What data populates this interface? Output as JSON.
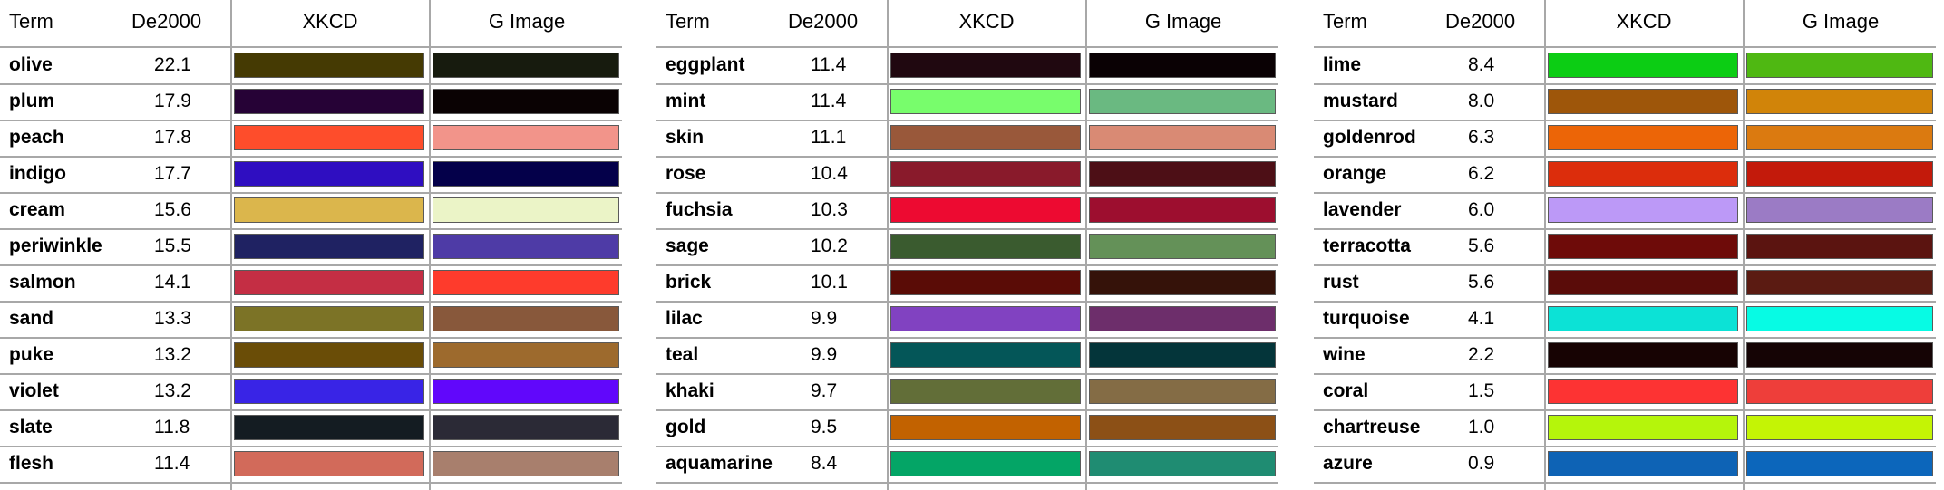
{
  "headers": {
    "term": "Term",
    "de2000": "De2000",
    "xkcd": "XKCD",
    "gimage": "G Image"
  },
  "tables": [
    {
      "rows": [
        {
          "term": "olive",
          "de": "22.1",
          "xkcd": "#453a03",
          "gimage": "#171b0e"
        },
        {
          "term": "plum",
          "de": "17.9",
          "xkcd": "#260236",
          "gimage": "#0a0203"
        },
        {
          "term": "peach",
          "de": "17.8",
          "xkcd": "#fe4d2b",
          "gimage": "#f2948a"
        },
        {
          "term": "indigo",
          "de": "17.7",
          "xkcd": "#2f0ec1",
          "gimage": "#04004a"
        },
        {
          "term": "cream",
          "de": "15.6",
          "xkcd": "#dbb64c",
          "gimage": "#ebf4c7"
        },
        {
          "term": "periwinkle",
          "de": "15.5",
          "xkcd": "#1f2262",
          "gimage": "#4e3ba6"
        },
        {
          "term": "salmon",
          "de": "14.1",
          "xkcd": "#c42e44",
          "gimage": "#fe3b2c"
        },
        {
          "term": "sand",
          "de": "13.3",
          "xkcd": "#7c7326",
          "gimage": "#88583b"
        },
        {
          "term": "puke",
          "de": "13.2",
          "xkcd": "#6a4d07",
          "gimage": "#9d6a2d"
        },
        {
          "term": "violet",
          "de": "13.2",
          "xkcd": "#3924e6",
          "gimage": "#6107fb"
        },
        {
          "term": "slate",
          "de": "11.8",
          "xkcd": "#141c22",
          "gimage": "#2b2a36"
        },
        {
          "term": "flesh",
          "de": "11.4",
          "xkcd": "#d26a5a",
          "gimage": "#a87f6d"
        }
      ]
    },
    {
      "rows": [
        {
          "term": "eggplant",
          "de": "11.4",
          "xkcd": "#200810",
          "gimage": "#0a0104"
        },
        {
          "term": "mint",
          "de": "11.4",
          "xkcd": "#78fd6c",
          "gimage": "#6ab981"
        },
        {
          "term": "skin",
          "de": "11.1",
          "xkcd": "#99583a",
          "gimage": "#d98a74"
        },
        {
          "term": "rose",
          "de": "10.4",
          "xkcd": "#891a2b",
          "gimage": "#4d0f16"
        },
        {
          "term": "fuchsia",
          "de": "10.3",
          "xkcd": "#ed0a31",
          "gimage": "#9d0e2f"
        },
        {
          "term": "sage",
          "de": "10.2",
          "xkcd": "#3a5b2f",
          "gimage": "#649158"
        },
        {
          "term": "brick",
          "de": "10.1",
          "xkcd": "#5a0c06",
          "gimage": "#351209"
        },
        {
          "term": "lilac",
          "de": "9.9",
          "xkcd": "#8142c1",
          "gimage": "#6d2e6b"
        },
        {
          "term": "teal",
          "de": "9.9",
          "xkcd": "#045658",
          "gimage": "#04353a"
        },
        {
          "term": "khaki",
          "de": "9.7",
          "xkcd": "#626e38",
          "gimage": "#846c45"
        },
        {
          "term": "gold",
          "de": "9.5",
          "xkcd": "#c26200",
          "gimage": "#8c5016"
        },
        {
          "term": "aquamarine",
          "de": "8.4",
          "xkcd": "#04a566",
          "gimage": "#1f8c72"
        }
      ]
    },
    {
      "rows": [
        {
          "term": "lime",
          "de": "8.4",
          "xkcd": "#0ccd14",
          "gimage": "#4fb812"
        },
        {
          "term": "mustard",
          "de": "8.0",
          "xkcd": "#9e560a",
          "gimage": "#d18409"
        },
        {
          "term": "goldenrod",
          "de": "6.3",
          "xkcd": "#ec6507",
          "gimage": "#db7a10"
        },
        {
          "term": "orange",
          "de": "6.2",
          "xkcd": "#dc2d0c",
          "gimage": "#c31a0b"
        },
        {
          "term": "lavender",
          "de": "6.0",
          "xkcd": "#bc99f7",
          "gimage": "#9b7bc5"
        },
        {
          "term": "terracotta",
          "de": "5.6",
          "xkcd": "#6e0b09",
          "gimage": "#5b1410"
        },
        {
          "term": "rust",
          "de": "5.6",
          "xkcd": "#5a0c09",
          "gimage": "#5b1b12"
        },
        {
          "term": "turquoise",
          "de": "4.1",
          "xkcd": "#0ce2d6",
          "gimage": "#07fbe4"
        },
        {
          "term": "wine",
          "de": "2.2",
          "xkcd": "#170303",
          "gimage": "#150405"
        },
        {
          "term": "coral",
          "de": "1.5",
          "xkcd": "#fd3333",
          "gimage": "#ee3e3a"
        },
        {
          "term": "chartreuse",
          "de": "1.0",
          "xkcd": "#b5f50b",
          "gimage": "#c4f405"
        },
        {
          "term": "azure",
          "de": "0.9",
          "xkcd": "#0e63b5",
          "gimage": "#0c66bb"
        }
      ]
    }
  ]
}
